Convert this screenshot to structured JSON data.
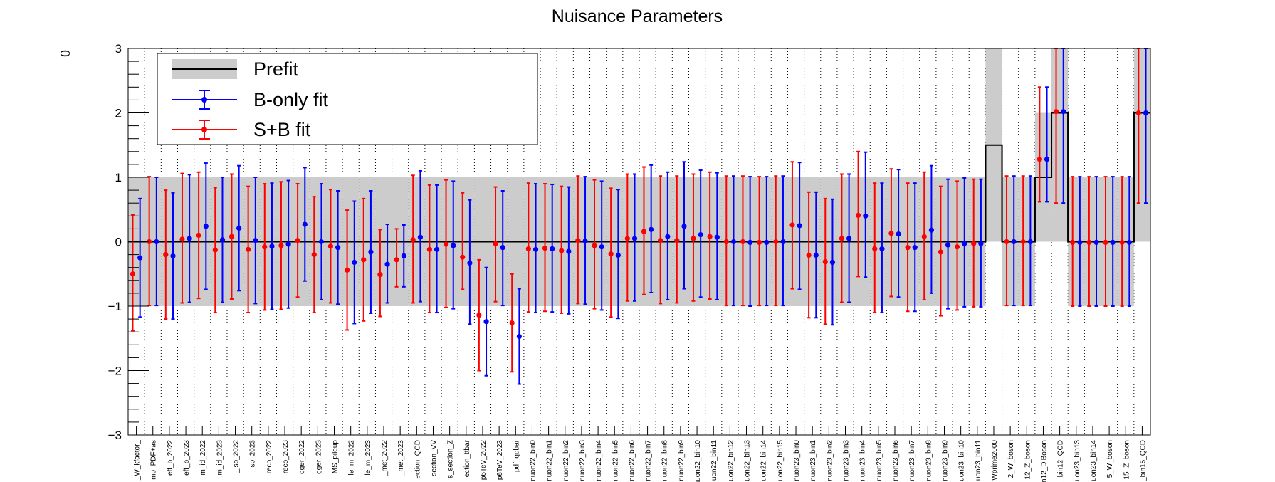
{
  "chart_data": {
    "type": "scatter",
    "title": "Nuisance Parameters",
    "ylabel": "θ",
    "ylim": [
      -3,
      3
    ],
    "yticks": [
      -3,
      -2,
      -1,
      0,
      1,
      2,
      3
    ],
    "ytick_labels": [
      "−3",
      "−2",
      "−1",
      "0",
      "1",
      "2",
      "3"
    ],
    "grid": "vertical dotted",
    "legend_position": "top-left",
    "legend": {
      "prefit": "Prefit",
      "bonly": "B-only fit",
      "sb": "S+B fit"
    },
    "colors": {
      "prefit_band": "#cccccc",
      "bonly": "#0000ff",
      "sb": "#ff0000",
      "axis": "#000000"
    },
    "categories": [
      "_W_kfactor_",
      "mo_PDF+as",
      "eff_b_2022",
      "eff_b_2023",
      "m_id_2022",
      "m_id_2023",
      "_iso_2022",
      "_iso_2023",
      "reco_2022",
      "reco_2023",
      "gger_2022",
      "gger_2023",
      "MS_pileup",
      "le_m_2022",
      "le_m_2023",
      "_met_2022",
      "_met_2023",
      "ection_QCD",
      "section_VV",
      "s_section_Z",
      "ection_ttbar",
      "p6TeV_2022",
      "p6TeV_2023",
      "pdf_qqbar",
      "nuon22_bin0",
      "nuon22_bin1",
      "nuon22_bin2",
      "nuon22_bin3",
      "nuon22_bin4",
      "nuon22_bin5",
      "nuon22_bin6",
      "nuon22_bin7",
      "nuon22_bin8",
      "nuon22_bin9",
      "nuon22_bin10",
      "uon22_bin11",
      "uon22_bin12",
      "uon22_bin13",
      "uon22_bin14",
      "uon22_bin15",
      "nuon23_bin0",
      "nuon23_bin1",
      "nuon23_bin2",
      "nuon23_bin3",
      "nuon23_bin4",
      "nuon23_bin5",
      "nuon23_bin6",
      "nuon23_bin7",
      "nuon23_bin8",
      "nuon23_bin9",
      "uon23_bin10",
      "uon23_bin11",
      "Wprime2000",
      "2_W_boson",
      "12_Z_boson",
      "n12_DiBoson",
      "_bin12_QCD",
      "uon23_bin13",
      "uon23_bin14",
      "5_W_boson",
      "15_Z_boson",
      "_bin15_QCD"
    ],
    "prefit": {
      "center": [
        0,
        0,
        0,
        0,
        0,
        0,
        0,
        0,
        0,
        0,
        0,
        0,
        0,
        0,
        0,
        0,
        0,
        0,
        0,
        0,
        0,
        0,
        0,
        0,
        0,
        0,
        0,
        0,
        0,
        0,
        0,
        0,
        0,
        0,
        0,
        0,
        0,
        0,
        0,
        0,
        0,
        0,
        0,
        0,
        0,
        0,
        0,
        0,
        0,
        0,
        0,
        0,
        1.5,
        0,
        0,
        1,
        2,
        0,
        0,
        0,
        0,
        2
      ],
      "low": [
        -1,
        -1,
        -1,
        -1,
        -1,
        -1,
        -1,
        -1,
        -1,
        -1,
        -1,
        -1,
        -1,
        -1,
        -1,
        -1,
        -1,
        -1,
        -1,
        -1,
        -1,
        -1,
        -1,
        -1,
        -1,
        -1,
        -1,
        -1,
        -1,
        -1,
        -1,
        -1,
        -1,
        -1,
        -1,
        -1,
        -1,
        -1,
        -1,
        -1,
        -1,
        -1,
        -1,
        -1,
        -1,
        -1,
        -1,
        -1,
        -1,
        -1,
        -1,
        -1,
        0,
        -1,
        -1,
        0,
        0,
        -1,
        -1,
        -1,
        -1,
        0
      ],
      "high": [
        1,
        1,
        1,
        1,
        1,
        1,
        1,
        1,
        1,
        1,
        1,
        1,
        1,
        1,
        1,
        1,
        1,
        1,
        1,
        1,
        1,
        1,
        1,
        1,
        1,
        1,
        1,
        1,
        1,
        1,
        1,
        1,
        1,
        1,
        1,
        1,
        1,
        1,
        1,
        1,
        1,
        1,
        1,
        1,
        1,
        1,
        1,
        1,
        1,
        1,
        1,
        1,
        3,
        1,
        1,
        2,
        4,
        1,
        1,
        1,
        1,
        4
      ]
    },
    "series": [
      {
        "name": "B-only fit",
        "values": [
          -0.25,
          0.0,
          -0.22,
          0.05,
          0.24,
          0.03,
          0.21,
          0.02,
          -0.07,
          -0.04,
          0.27,
          0.0,
          -0.09,
          -0.32,
          -0.16,
          -0.35,
          -0.22,
          0.07,
          -0.12,
          -0.06,
          -0.33,
          -1.24,
          -0.09,
          -1.47,
          -0.12,
          -0.11,
          -0.15,
          0.01,
          -0.08,
          -0.21,
          0.05,
          0.19,
          0.08,
          0.24,
          0.11,
          0.07,
          0.0,
          -0.01,
          -0.01,
          0.0,
          0.25,
          -0.21,
          -0.32,
          0.05,
          0.4,
          -0.11,
          0.12,
          -0.09,
          0.18,
          -0.05,
          -0.03,
          -0.03,
          null,
          0.0,
          0.0,
          1.28,
          2.02,
          -0.01,
          -0.01,
          -0.01,
          -0.01,
          2.0
        ],
        "err_low": [
          0.92,
          0.99,
          0.98,
          0.99,
          0.98,
          0.97,
          0.97,
          0.98,
          0.98,
          0.99,
          0.88,
          0.9,
          0.88,
          0.95,
          0.95,
          0.6,
          0.48,
          1.0,
          0.98,
          0.98,
          0.95,
          0.84,
          0.9,
          0.74,
          0.98,
          0.98,
          0.97,
          0.98,
          0.98,
          0.98,
          0.97,
          0.98,
          0.98,
          0.97,
          0.97,
          0.97,
          0.99,
          0.99,
          0.98,
          0.99,
          0.99,
          0.97,
          0.97,
          0.99,
          0.95,
          0.99,
          0.98,
          0.99,
          0.98,
          0.99,
          0.98,
          0.98,
          null,
          0.99,
          0.99,
          0.66,
          1.42,
          0.99,
          0.99,
          0.99,
          0.99,
          1.4
        ],
        "err_high": [
          0.92,
          1.0,
          0.98,
          0.99,
          0.98,
          0.97,
          0.97,
          0.98,
          0.98,
          0.99,
          0.88,
          0.9,
          0.88,
          0.95,
          0.95,
          0.62,
          0.48,
          1.03,
          1.0,
          1.0,
          0.98,
          0.84,
          0.88,
          0.74,
          1.02,
          1.0,
          1.0,
          1.0,
          1.02,
          1.02,
          1.0,
          1.0,
          1.0,
          1.0,
          1.0,
          1.0,
          1.02,
          1.02,
          1.02,
          1.02,
          0.98,
          0.98,
          0.98,
          1.0,
          0.99,
          1.02,
          1.0,
          1.0,
          1.0,
          1.02,
          1.02,
          1.0,
          null,
          1.02,
          1.02,
          1.12,
          0.98,
          1.02,
          1.02,
          1.02,
          1.02,
          1.0
        ]
      },
      {
        "name": "S+B fit",
        "values": [
          -0.5,
          0.0,
          -0.2,
          0.04,
          0.1,
          -0.13,
          0.08,
          -0.12,
          -0.08,
          -0.06,
          0.02,
          -0.2,
          -0.07,
          -0.44,
          -0.28,
          -0.51,
          -0.28,
          0.03,
          -0.12,
          -0.04,
          -0.24,
          -1.14,
          -0.03,
          -1.26,
          -0.11,
          -0.1,
          -0.14,
          0.02,
          -0.06,
          -0.19,
          0.05,
          0.16,
          0.02,
          0.02,
          0.05,
          0.08,
          0.0,
          0.0,
          -0.01,
          0.0,
          0.26,
          -0.21,
          -0.31,
          0.05,
          0.41,
          -0.11,
          0.13,
          -0.09,
          0.08,
          -0.16,
          -0.08,
          -0.03,
          null,
          0.0,
          0.0,
          1.28,
          2.02,
          -0.01,
          -0.01,
          -0.01,
          -0.01,
          2.0
        ],
        "err_low": [
          0.88,
          0.99,
          1.0,
          0.99,
          0.98,
          0.97,
          0.97,
          0.98,
          0.98,
          0.99,
          0.88,
          0.9,
          0.88,
          0.93,
          0.95,
          0.65,
          0.42,
          0.98,
          0.98,
          0.98,
          0.5,
          0.86,
          0.9,
          0.76,
          0.98,
          0.98,
          0.97,
          0.98,
          0.98,
          0.98,
          0.97,
          0.98,
          0.98,
          0.97,
          0.97,
          0.97,
          0.99,
          0.99,
          0.98,
          0.99,
          0.99,
          0.97,
          0.97,
          0.99,
          0.95,
          0.99,
          0.98,
          0.99,
          0.98,
          0.99,
          0.98,
          0.98,
          null,
          0.99,
          0.99,
          0.66,
          1.42,
          0.99,
          0.99,
          0.99,
          0.99,
          1.4
        ],
        "err_high": [
          0.92,
          1.01,
          1.0,
          1.02,
          0.98,
          0.97,
          0.97,
          0.98,
          0.98,
          0.99,
          0.88,
          0.9,
          0.88,
          0.93,
          0.95,
          0.7,
          0.48,
          1.0,
          1.0,
          1.0,
          1.0,
          0.86,
          0.88,
          0.76,
          1.02,
          1.0,
          1.0,
          1.0,
          1.02,
          1.02,
          1.0,
          1.0,
          1.0,
          1.0,
          1.0,
          1.0,
          1.02,
          1.02,
          1.02,
          1.02,
          0.98,
          0.98,
          0.98,
          1.0,
          0.99,
          1.02,
          1.0,
          1.0,
          1.0,
          1.02,
          1.02,
          1.0,
          null,
          1.02,
          1.02,
          1.12,
          0.98,
          1.02,
          1.02,
          1.02,
          1.02,
          1.0
        ]
      }
    ]
  }
}
